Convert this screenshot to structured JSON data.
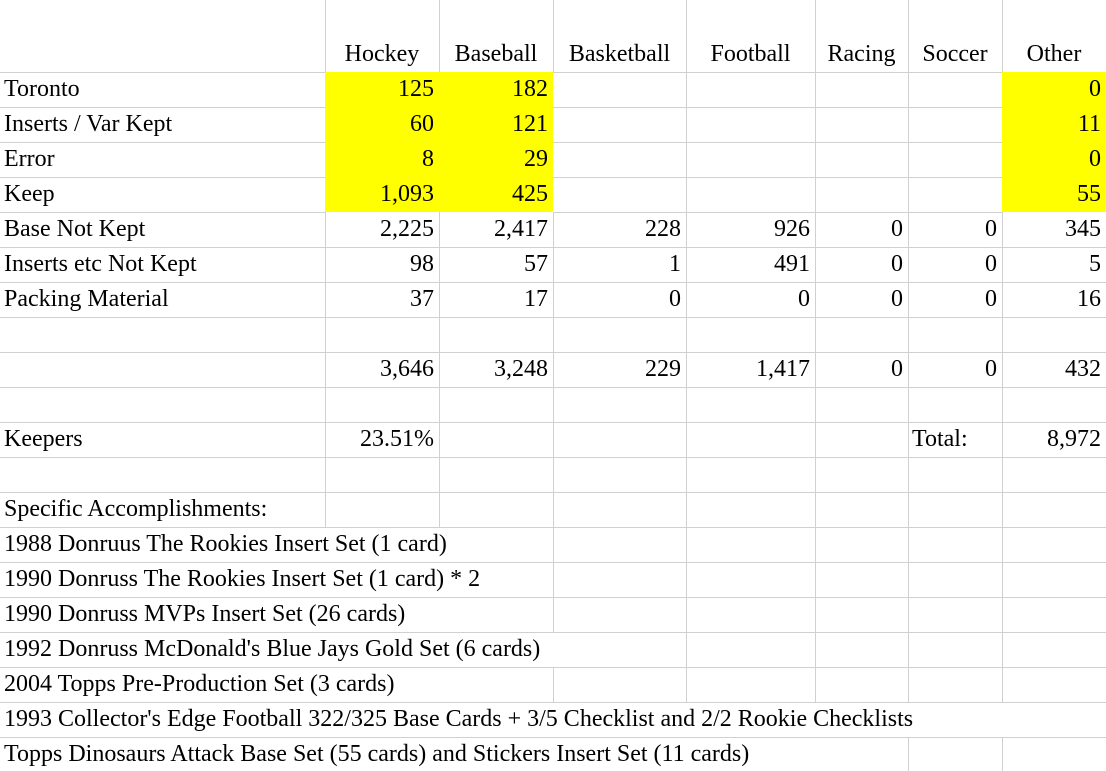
{
  "colors": {
    "highlight": "#ffff00",
    "gridline": "#d0d0d0",
    "text": "#000000",
    "background": "#ffffff"
  },
  "chart_data": {
    "type": "table",
    "columns": [
      "",
      "Hockey",
      "Baseball",
      "Basketball",
      "Football",
      "Racing",
      "Soccer",
      "Other"
    ],
    "rows": [
      {
        "label": "Toronto",
        "cells": [
          "125",
          "182",
          "",
          "",
          "",
          "",
          "0"
        ],
        "highlight": true
      },
      {
        "label": "Inserts / Var Kept",
        "cells": [
          "60",
          "121",
          "",
          "",
          "",
          "",
          "11"
        ],
        "highlight": true
      },
      {
        "label": "Error",
        "cells": [
          "8",
          "29",
          "",
          "",
          "",
          "",
          "0"
        ],
        "highlight": true
      },
      {
        "label": "Keep",
        "cells": [
          "1,093",
          "425",
          "",
          "",
          "",
          "",
          "55"
        ],
        "highlight": true
      },
      {
        "label": "Base Not Kept",
        "cells": [
          "2,225",
          "2,417",
          "228",
          "926",
          "0",
          "0",
          "345"
        ],
        "highlight": false
      },
      {
        "label": "Inserts etc Not Kept",
        "cells": [
          "98",
          "57",
          "1",
          "491",
          "0",
          "0",
          "5"
        ],
        "highlight": false
      },
      {
        "label": "Packing Material",
        "cells": [
          "37",
          "17",
          "0",
          "0",
          "0",
          "0",
          "16"
        ],
        "highlight": false
      },
      {
        "label": "",
        "cells": [
          "",
          "",
          "",
          "",
          "",
          "",
          ""
        ],
        "highlight": false
      },
      {
        "label": "",
        "cells": [
          "3,646",
          "3,248",
          "229",
          "1,417",
          "0",
          "0",
          "432"
        ],
        "highlight": false
      },
      {
        "label": "",
        "cells": [
          "",
          "",
          "",
          "",
          "",
          "",
          ""
        ],
        "highlight": false
      },
      {
        "label": "Keepers",
        "cells": [
          "23.51%",
          "",
          "",
          "",
          "",
          "Total:",
          "8,972"
        ],
        "highlight": false
      },
      {
        "label": "",
        "cells": [
          "",
          "",
          "",
          "",
          "",
          "",
          ""
        ],
        "highlight": false
      },
      {
        "label": "Specific Accomplishments:",
        "cells": [
          "",
          "",
          "",
          "",
          "",
          "",
          ""
        ],
        "highlight": false
      }
    ],
    "notes": [
      "1988 Donruus The Rookies Insert Set (1 card)",
      "1990 Donruss The Rookies Insert Set (1 card) * 2",
      "1990 Donruss MVPs Insert Set (26 cards)",
      "1992 Donruss McDonald's Blue Jays Gold Set (6 cards)",
      "2004 Topps Pre-Production Set (3 cards)",
      "1993 Collector's Edge Football 322/325 Base Cards + 3/5 Checklist and 2/2 Rookie Checklists",
      "Topps Dinosaurs Attack Base Set (55 cards) and Stickers Insert Set (11 cards)"
    ]
  }
}
